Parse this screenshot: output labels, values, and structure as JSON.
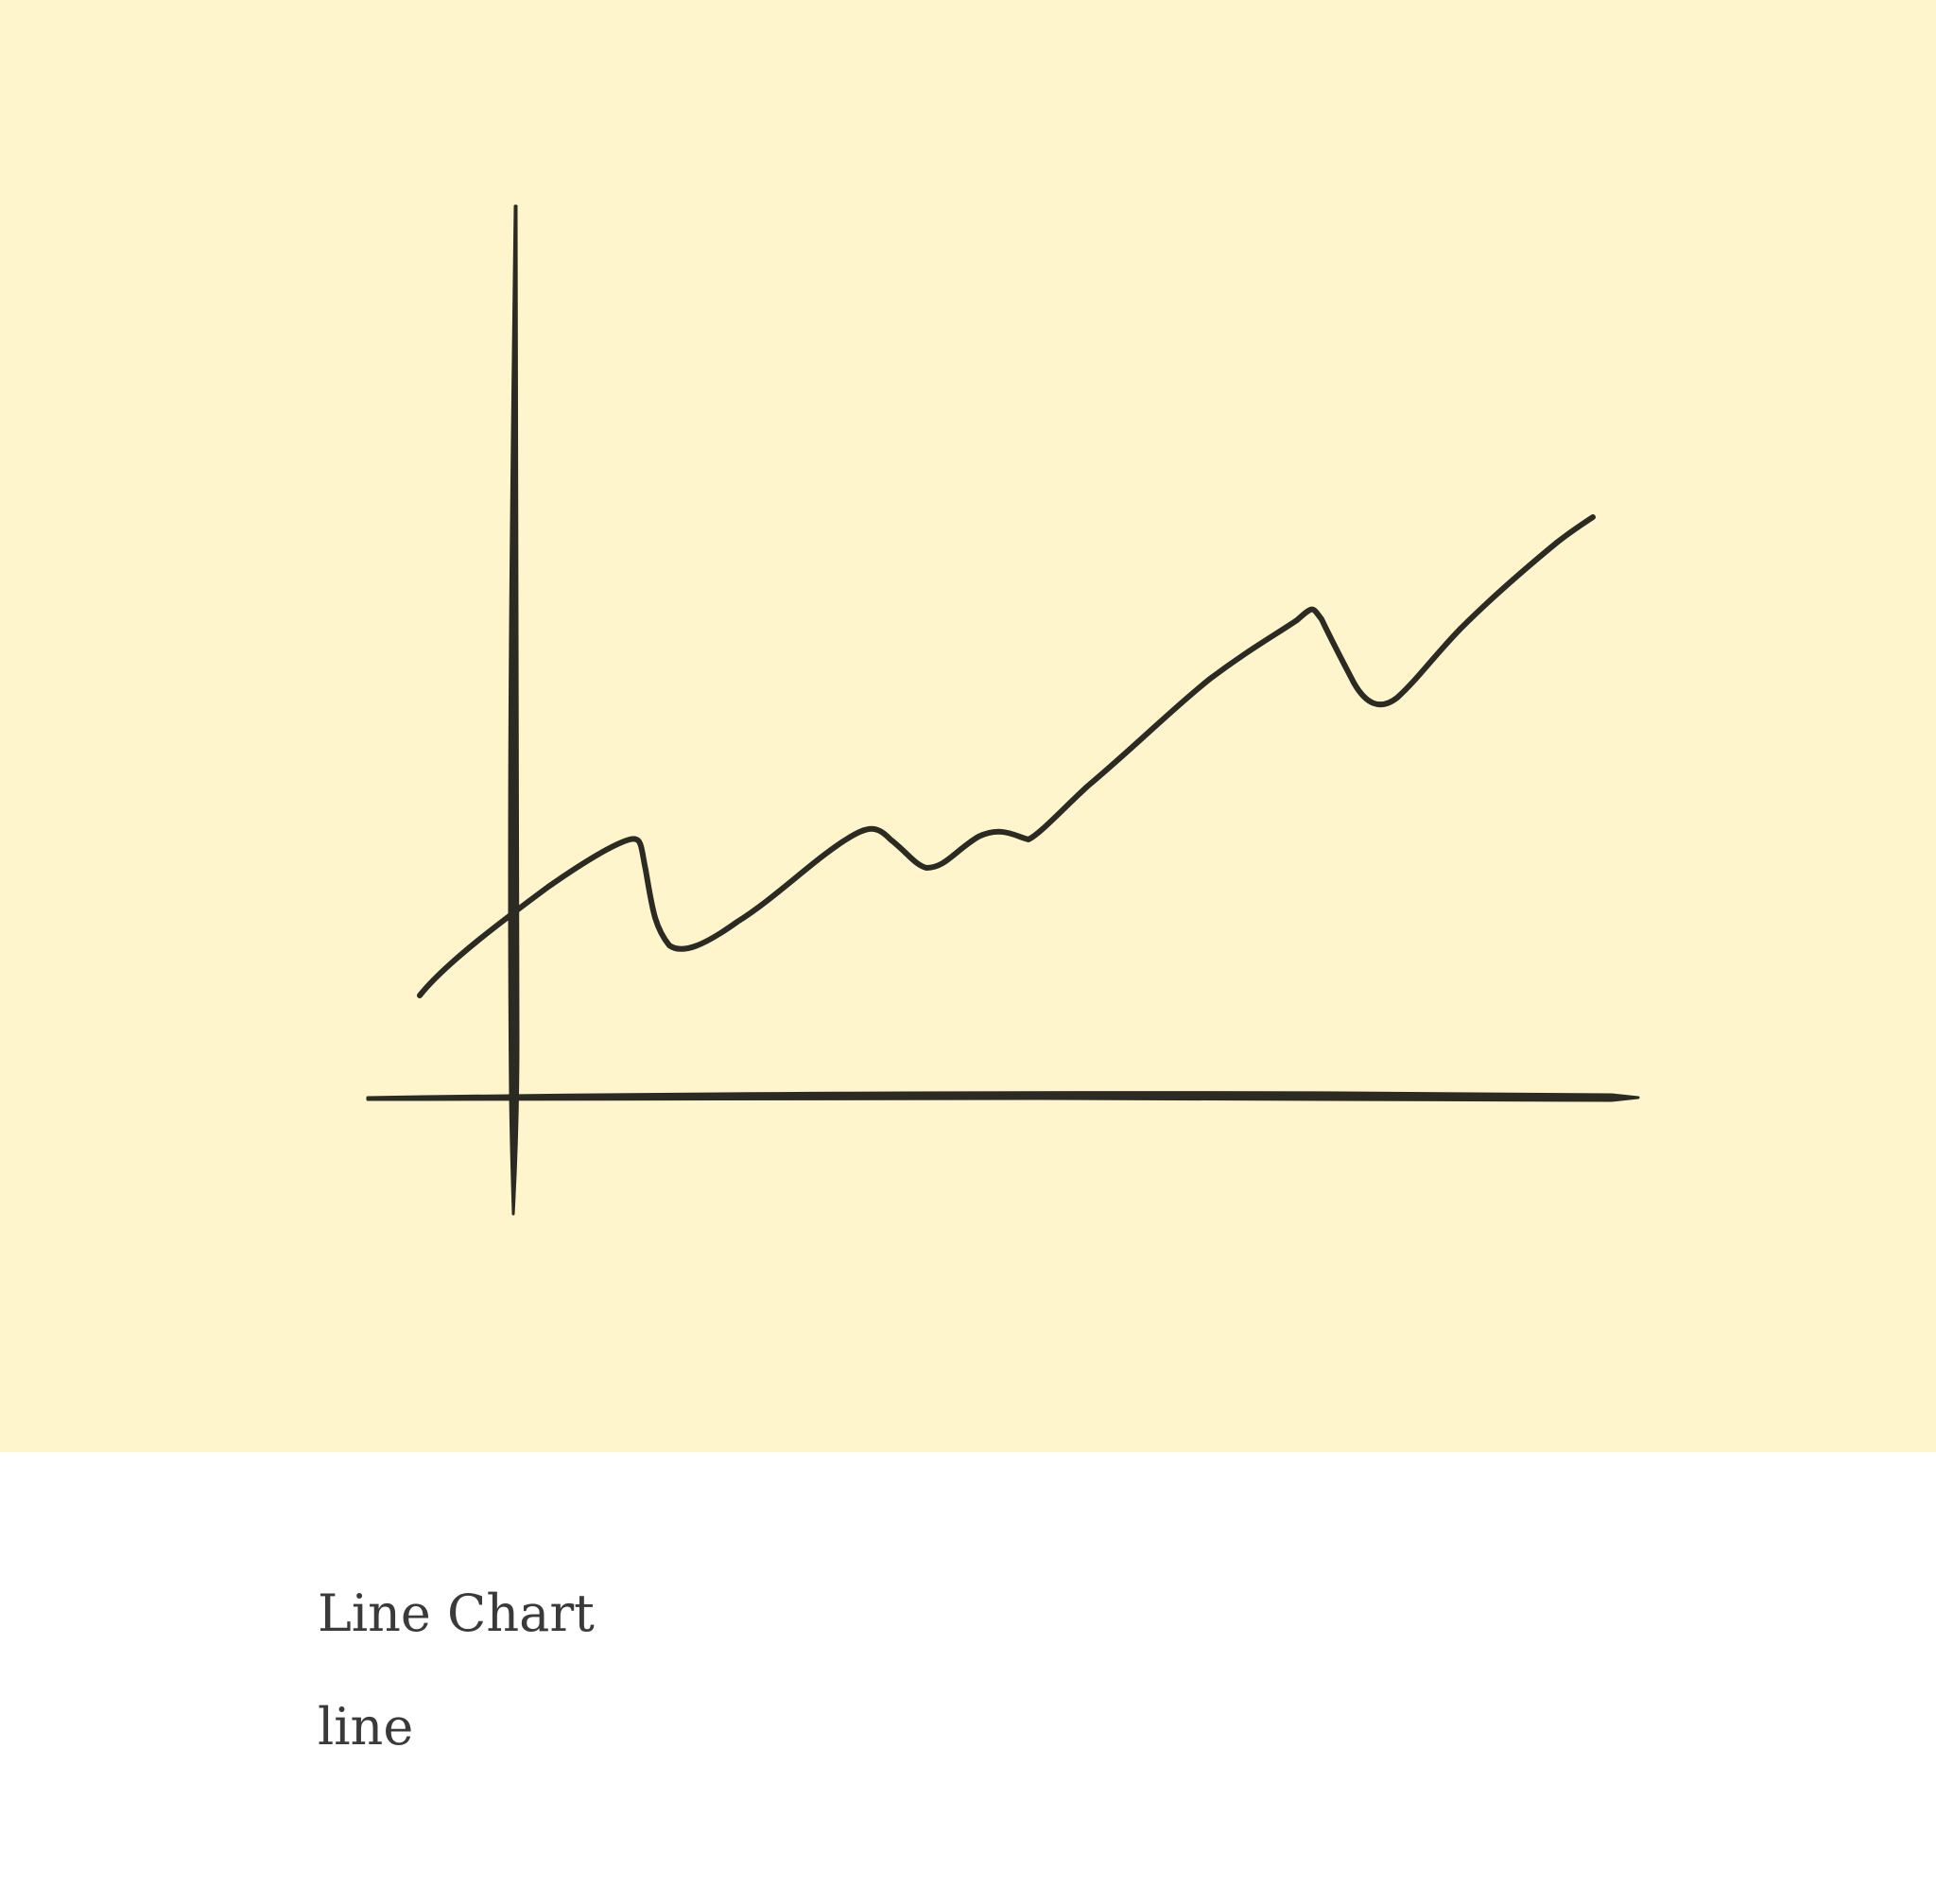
{
  "card": {
    "title": "Line Chart",
    "subtitle": "line"
  },
  "illustration": {
    "icon": "hand-drawn-line-chart-icon",
    "background_color": "#fef5cd",
    "ink_color": "#2b2b24"
  }
}
